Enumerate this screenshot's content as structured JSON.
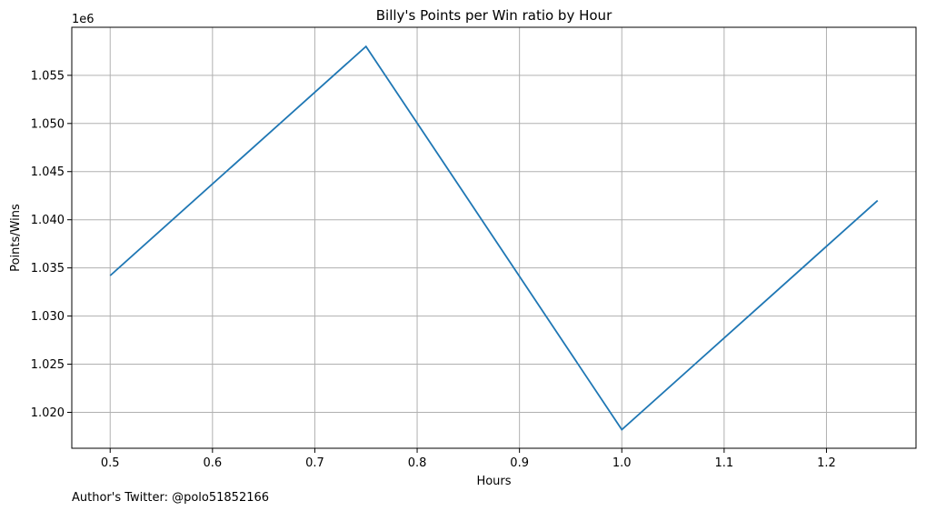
{
  "chart_data": {
    "type": "line",
    "title": "Billy's Points per Win ratio by Hour",
    "xlabel": "Hours",
    "ylabel": "Points/Wins",
    "y_offset_label": "1e6",
    "footnote": "Author's Twitter: @polo51852166",
    "grid": true,
    "xlim": [
      0.4625,
      1.2875
    ],
    "ylim": [
      1.01627,
      1.05999
    ],
    "x_ticks": [
      0.5,
      0.6,
      0.7,
      0.8,
      0.9,
      1.0,
      1.1,
      1.2
    ],
    "x_tick_labels": [
      "0.5",
      "0.6",
      "0.7",
      "0.8",
      "0.9",
      "1.0",
      "1.1",
      "1.2"
    ],
    "y_ticks": [
      1.02,
      1.025,
      1.03,
      1.035,
      1.04,
      1.045,
      1.05,
      1.055
    ],
    "y_tick_labels": [
      "1.020",
      "1.025",
      "1.030",
      "1.035",
      "1.040",
      "1.045",
      "1.050",
      "1.055"
    ],
    "series": [
      {
        "name": "Points/Wins",
        "color": "#1f77b4",
        "x": [
          0.5,
          0.75,
          1.0,
          1.25
        ],
        "y": [
          1.0342,
          1.058,
          1.0182,
          1.042
        ]
      }
    ]
  }
}
